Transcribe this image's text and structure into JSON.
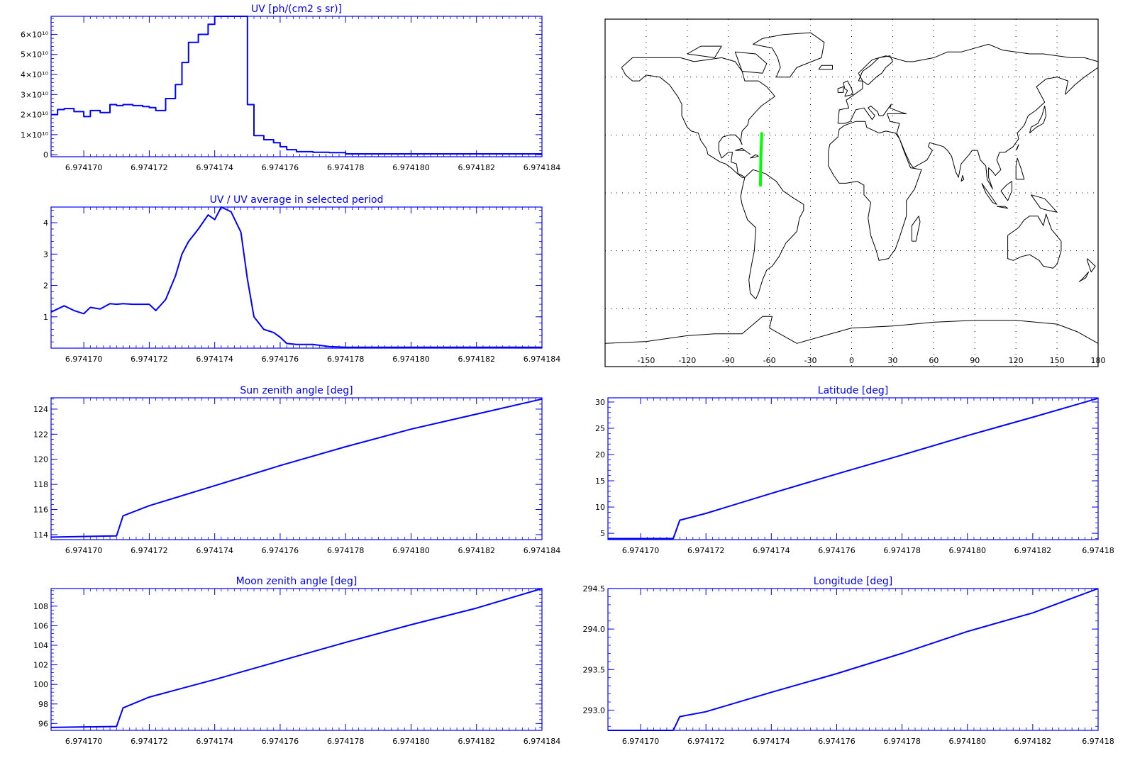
{
  "chart_data": [
    {
      "id": "uv",
      "type": "line",
      "step": true,
      "title": "UV [ph/(cm2 s sr)]",
      "xlim": [
        6.974169,
        6.974184
      ],
      "ylim": [
        -0.1,
        6.9
      ],
      "x_ticks": [
        6.97417,
        6.974172,
        6.974174,
        6.974176,
        6.974178,
        6.97418,
        6.974182,
        6.974184
      ],
      "x_tick_labels": [
        "6.974170",
        "6.974172",
        "6.974174",
        "6.974176",
        "6.9741​78",
        "6.974180",
        "6.974182",
        "6.974184"
      ],
      "y_ticks": [
        0,
        1,
        2,
        3,
        4,
        5,
        6
      ],
      "y_tick_labels": [
        "0",
        "1×10¹⁰",
        "2×10¹⁰",
        "3×10¹⁰",
        "4×10¹⁰",
        "5×10¹⁰",
        "6×10¹⁰"
      ],
      "y_unit_scale": "1e10",
      "series": [
        {
          "color": "#0000ff",
          "x": [
            6.974169,
            6.9741692,
            6.9741694,
            6.9741697,
            6.97417,
            6.9741702,
            6.9741705,
            6.9741708,
            6.974171,
            6.9741712,
            6.9741715,
            6.9741718,
            6.974172,
            6.9741722,
            6.9741725,
            6.9741728,
            6.974173,
            6.9741732,
            6.9741735,
            6.9741738,
            6.974174,
            6.9741742,
            6.9741745,
            6.9741748,
            6.974175,
            6.9741752,
            6.9741755,
            6.9741758,
            6.974176,
            6.9741762,
            6.9741765,
            6.974177,
            6.9741775,
            6.974178,
            6.974179,
            6.97418,
            6.974181,
            6.974182,
            6.974183,
            6.974184
          ],
          "y": [
            2.0,
            2.25,
            2.3,
            2.15,
            1.9,
            2.2,
            2.1,
            2.5,
            2.45,
            2.5,
            2.45,
            2.4,
            2.35,
            2.2,
            2.8,
            3.5,
            4.6,
            5.6,
            6.0,
            6.5,
            6.9,
            6.9,
            6.9,
            6.9,
            2.5,
            0.95,
            0.75,
            0.6,
            0.4,
            0.25,
            0.15,
            0.12,
            0.1,
            0.04,
            0.04,
            0.04,
            0.04,
            0.04,
            0.04,
            0.04
          ]
        }
      ]
    },
    {
      "id": "uvratio",
      "type": "line",
      "title": "UV / UV average in selected period",
      "xlim": [
        6.974169,
        6.974184
      ],
      "ylim": [
        0,
        4.5
      ],
      "x_ticks": [
        6.97417,
        6.974172,
        6.974174,
        6.974176,
        6.974178,
        6.97418,
        6.974182,
        6.974184
      ],
      "x_tick_labels": [
        "6.974170",
        "6.974172",
        "6.974174",
        "6.974176",
        "6.974178",
        "6.974180",
        "6.974182",
        "6.974184"
      ],
      "y_ticks": [
        1,
        2,
        3,
        4
      ],
      "y_tick_labels": [
        "1",
        "2",
        "3",
        "4"
      ],
      "series": [
        {
          "color": "#0000ff",
          "x": [
            6.974169,
            6.9741692,
            6.9741694,
            6.9741697,
            6.97417,
            6.9741702,
            6.9741705,
            6.9741708,
            6.974171,
            6.9741712,
            6.9741715,
            6.974172,
            6.9741722,
            6.9741725,
            6.9741728,
            6.974173,
            6.9741732,
            6.9741735,
            6.9741738,
            6.974174,
            6.9741742,
            6.9741745,
            6.9741748,
            6.974175,
            6.9741752,
            6.9741755,
            6.9741758,
            6.974176,
            6.9741762,
            6.9741765,
            6.974177,
            6.9741775,
            6.974178,
            6.974179,
            6.97418,
            6.974181,
            6.974182,
            6.974183,
            6.974184
          ],
          "y": [
            1.15,
            1.25,
            1.35,
            1.2,
            1.1,
            1.3,
            1.25,
            1.42,
            1.4,
            1.42,
            1.4,
            1.4,
            1.2,
            1.55,
            2.3,
            3.0,
            3.4,
            3.8,
            4.25,
            4.1,
            4.5,
            4.35,
            3.7,
            2.2,
            1.0,
            0.6,
            0.5,
            0.35,
            0.15,
            0.12,
            0.12,
            0.05,
            0.03,
            0.03,
            0.03,
            0.03,
            0.03,
            0.03,
            0.03
          ]
        }
      ]
    },
    {
      "id": "sunzen",
      "type": "line",
      "title": "Sun zenith angle [deg]",
      "xlim": [
        6.974169,
        6.974184
      ],
      "ylim": [
        113.6,
        124.9
      ],
      "x_ticks": [
        6.97417,
        6.974172,
        6.974174,
        6.974176,
        6.974178,
        6.97418,
        6.974182,
        6.974184
      ],
      "x_tick_labels": [
        "6.974170",
        "6.974172",
        "6.974174",
        "6.974176",
        "6.974178",
        "6.974180",
        "6.974182",
        "6.974184"
      ],
      "y_ticks": [
        114,
        116,
        118,
        120,
        122,
        124
      ],
      "y_tick_labels": [
        "114",
        "116",
        "118",
        "120",
        "122",
        "124"
      ],
      "series": [
        {
          "color": "#0000ff",
          "x": [
            6.974169,
            6.974171,
            6.9741712,
            6.974172,
            6.974174,
            6.974176,
            6.974178,
            6.97418,
            6.974182,
            6.974184
          ],
          "y": [
            113.8,
            113.9,
            115.5,
            116.3,
            117.9,
            119.5,
            121.0,
            122.4,
            123.6,
            124.8
          ]
        }
      ]
    },
    {
      "id": "moonzen",
      "type": "line",
      "title": "Moon zenith angle [deg]",
      "xlim": [
        6.974169,
        6.974184
      ],
      "ylim": [
        95.3,
        109.8
      ],
      "x_ticks": [
        6.97417,
        6.974172,
        6.974174,
        6.974176,
        6.974178,
        6.97418,
        6.974182,
        6.974184
      ],
      "x_tick_labels": [
        "6.974170",
        "6.974172",
        "6.974174",
        "6.974176",
        "6.974178",
        "6.974180",
        "6.974182",
        "6.974184"
      ],
      "y_ticks": [
        96,
        98,
        100,
        102,
        104,
        106,
        108
      ],
      "y_tick_labels": [
        "96",
        "98",
        "100",
        "102",
        "104",
        "106",
        "108"
      ],
      "series": [
        {
          "color": "#0000ff",
          "x": [
            6.974169,
            6.974171,
            6.9741712,
            6.974172,
            6.974174,
            6.974176,
            6.974178,
            6.97418,
            6.974182,
            6.974184
          ],
          "y": [
            95.6,
            95.7,
            97.6,
            98.7,
            100.5,
            102.4,
            104.3,
            106.1,
            107.8,
            109.8
          ]
        }
      ]
    },
    {
      "id": "lat",
      "type": "line",
      "title": "Latitude [deg]",
      "xlim": [
        6.974169,
        6.974184
      ],
      "ylim": [
        3.8,
        30.8
      ],
      "x_ticks": [
        6.97417,
        6.974172,
        6.974174,
        6.974176,
        6.974178,
        6.97418,
        6.974182,
        6.974184
      ],
      "x_tick_labels": [
        "6.974170",
        "6.974172",
        "6.974174",
        "6.974176",
        "6.974178",
        "6.974180",
        "6.974182",
        "6.97418"
      ],
      "y_ticks": [
        5,
        10,
        15,
        20,
        25,
        30
      ],
      "y_tick_labels": [
        "5",
        "10",
        "15",
        "20",
        "25",
        "30"
      ],
      "series": [
        {
          "color": "#0000ff",
          "x": [
            6.974169,
            6.974171,
            6.9741712,
            6.974172,
            6.974174,
            6.974176,
            6.974178,
            6.97418,
            6.974182,
            6.974184
          ],
          "y": [
            4.0,
            4.0,
            7.5,
            8.8,
            12.6,
            16.3,
            19.9,
            23.6,
            27.1,
            30.7
          ]
        }
      ]
    },
    {
      "id": "lon",
      "type": "line",
      "title": "Longitude [deg]",
      "xlim": [
        6.974169,
        6.974184
      ],
      "ylim": [
        292.75,
        294.5
      ],
      "x_ticks": [
        6.97417,
        6.974172,
        6.974174,
        6.974176,
        6.974178,
        6.97418,
        6.974182,
        6.974184
      ],
      "x_tick_labels": [
        "6.974170",
        "6.974172",
        "6.974174",
        "6.974176",
        "6.974178",
        "6.974180",
        "6.974182",
        "6.97418"
      ],
      "y_ticks": [
        293.0,
        293.5,
        294.0,
        294.5
      ],
      "y_tick_labels": [
        "293.0",
        "293.5",
        "294.0",
        "294.5"
      ],
      "series": [
        {
          "color": "#0000ff",
          "x": [
            6.974169,
            6.974171,
            6.9741712,
            6.974172,
            6.974174,
            6.974176,
            6.974178,
            6.97418,
            6.974182,
            6.974184
          ],
          "y": [
            292.75,
            292.75,
            292.92,
            292.98,
            293.22,
            293.45,
            293.7,
            293.97,
            294.2,
            294.5
          ]
        }
      ]
    },
    {
      "id": "worldmap",
      "type": "scatter",
      "title": "",
      "xlim": [
        -180,
        180
      ],
      "ylim": [
        -90,
        90
      ],
      "x_ticks": [
        -150,
        -120,
        -90,
        -60,
        -30,
        0,
        30,
        60,
        90,
        120,
        150,
        180
      ],
      "x_tick_labels": [
        "-150",
        "-120",
        "-90",
        "-60",
        "-30",
        "0",
        "30",
        "60",
        "90",
        "120",
        "150",
        "180"
      ],
      "grid": true,
      "series": [
        {
          "color": "#00ff00",
          "lon": [
            -65.6,
            -65.8,
            -66.0,
            -66.2,
            -66.4,
            -66.6
          ],
          "lat": [
            30.7,
            27.1,
            23.6,
            19.9,
            12.6,
            4.0
          ]
        }
      ]
    }
  ]
}
